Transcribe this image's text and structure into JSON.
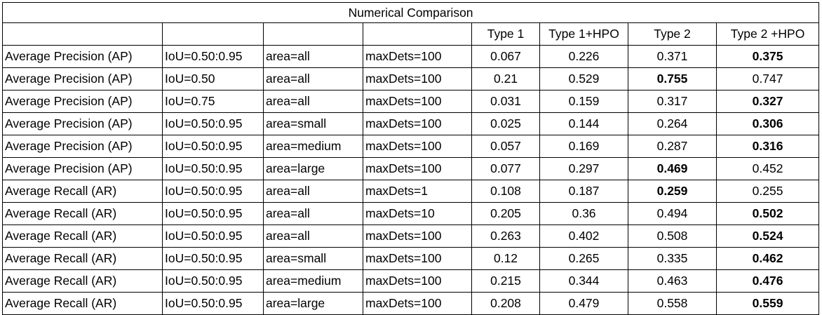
{
  "title": "Numerical Comparison",
  "header": [
    "",
    "",
    "",
    "",
    "Type 1",
    "Type 1+HPO",
    "Type 2",
    "Type 2 +HPO"
  ],
  "rows": [
    {
      "metric": "Average Precision (AP)",
      "iou": "IoU=0.50:0.95",
      "area": "area=all",
      "maxdets": "maxDets=100",
      "t1": "0.067",
      "t1hpo": "0.226",
      "t2": "0.371",
      "t2hpo": "0.375",
      "bold": "t2hpo"
    },
    {
      "metric": "Average Precision (AP)",
      "iou": "IoU=0.50",
      "area": "area=all",
      "maxdets": "maxDets=100",
      "t1": "0.21",
      "t1hpo": "0.529",
      "t2": "0.755",
      "t2hpo": "0.747",
      "bold": "t2"
    },
    {
      "metric": "Average Precision (AP)",
      "iou": "IoU=0.75",
      "area": "area=all",
      "maxdets": "maxDets=100",
      "t1": "0.031",
      "t1hpo": "0.159",
      "t2": "0.317",
      "t2hpo": "0.327",
      "bold": "t2hpo"
    },
    {
      "metric": "Average Precision (AP)",
      "iou": "IoU=0.50:0.95",
      "area": "area=small",
      "maxdets": "maxDets=100",
      "t1": "0.025",
      "t1hpo": "0.144",
      "t2": "0.264",
      "t2hpo": "0.306",
      "bold": "t2hpo"
    },
    {
      "metric": "Average Precision (AP)",
      "iou": "IoU=0.50:0.95",
      "area": "area=medium",
      "maxdets": "maxDets=100",
      "t1": "0.057",
      "t1hpo": "0.169",
      "t2": "0.287",
      "t2hpo": "0.316",
      "bold": "t2hpo"
    },
    {
      "metric": "Average Precision (AP)",
      "iou": "IoU=0.50:0.95",
      "area": "area=large",
      "maxdets": "maxDets=100",
      "t1": "0.077",
      "t1hpo": "0.297",
      "t2": "0.469",
      "t2hpo": "0.452",
      "bold": "t2"
    },
    {
      "metric": "Average Recall (AR)",
      "iou": "IoU=0.50:0.95",
      "area": "area=all",
      "maxdets": "maxDets=1",
      "t1": "0.108",
      "t1hpo": "0.187",
      "t2": "0.259",
      "t2hpo": "0.255",
      "bold": "t2"
    },
    {
      "metric": "Average Recall (AR)",
      "iou": "IoU=0.50:0.95",
      "area": "area=all",
      "maxdets": "maxDets=10",
      "t1": "0.205",
      "t1hpo": "0.36",
      "t2": "0.494",
      "t2hpo": "0.502",
      "bold": "t2hpo"
    },
    {
      "metric": "Average Recall (AR)",
      "iou": "IoU=0.50:0.95",
      "area": "area=all",
      "maxdets": "maxDets=100",
      "t1": "0.263",
      "t1hpo": "0.402",
      "t2": "0.508",
      "t2hpo": "0.524",
      "bold": "t2hpo"
    },
    {
      "metric": "Average Recall (AR)",
      "iou": "IoU=0.50:0.95",
      "area": "area=small",
      "maxdets": "maxDets=100",
      "t1": "0.12",
      "t1hpo": "0.265",
      "t2": "0.335",
      "t2hpo": "0.462",
      "bold": "t2hpo"
    },
    {
      "metric": "Average Recall (AR)",
      "iou": "IoU=0.50:0.95",
      "area": "area=medium",
      "maxdets": "maxDets=100",
      "t1": "0.215",
      "t1hpo": "0.344",
      "t2": "0.463",
      "t2hpo": "0.476",
      "bold": "t2hpo"
    },
    {
      "metric": "Average Recall (AR)",
      "iou": "IoU=0.50:0.95",
      "area": "area=large",
      "maxdets": "maxDets=100",
      "t1": "0.208",
      "t1hpo": "0.479",
      "t2": "0.558",
      "t2hpo": "0.559",
      "bold": "t2hpo"
    }
  ]
}
